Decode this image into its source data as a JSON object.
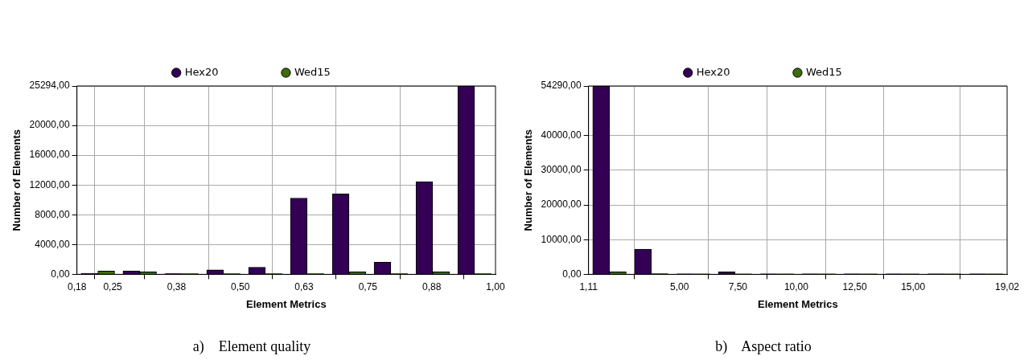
{
  "chart_data": [
    {
      "type": "histogram",
      "title": "a)    Element quality",
      "xlabel": "Element Metrics",
      "ylabel": "Number of Elements",
      "legend": "top",
      "grid": true,
      "bins": [
        0.18,
        0.262,
        0.344,
        0.426,
        0.508,
        0.59,
        0.672,
        0.754,
        0.836,
        0.918,
        1.0
      ],
      "series": [
        {
          "name": "Hex20",
          "color": "#330056",
          "values": [
            150,
            450,
            100,
            600,
            940,
            10240,
            10810,
            1630,
            12440,
            25294
          ]
        },
        {
          "name": "Wed15",
          "color": "#3d6b0e",
          "values": [
            450,
            330,
            100,
            100,
            100,
            100,
            330,
            100,
            330,
            100
          ]
        }
      ],
      "xlim": [
        0.18,
        1.0
      ],
      "xticks": [
        {
          "value": 0.18,
          "label": "0,18"
        },
        {
          "value": 0.25,
          "label": "0,25"
        },
        {
          "value": 0.375,
          "label": "0,38"
        },
        {
          "value": 0.5,
          "label": "0,50"
        },
        {
          "value": 0.625,
          "label": "0,63"
        },
        {
          "value": 0.75,
          "label": "0,75"
        },
        {
          "value": 0.875,
          "label": "0,88"
        },
        {
          "value": 1.0,
          "label": "1,00"
        }
      ],
      "ylim": [
        0,
        25294
      ],
      "yticks": [
        {
          "value": 0,
          "label": "0,00"
        },
        {
          "value": 4000,
          "label": "4000,00"
        },
        {
          "value": 8000,
          "label": "8000,00"
        },
        {
          "value": 12000,
          "label": "12000,00"
        },
        {
          "value": 16000,
          "label": "16000,00"
        },
        {
          "value": 20000,
          "label": "20000,00"
        },
        {
          "value": 25294,
          "label": "25294,00"
        }
      ]
    },
    {
      "type": "histogram",
      "title": "b)    Aspect ratio",
      "xlabel": "Element Metrics",
      "ylabel": "Number of Elements",
      "legend": "top",
      "grid": true,
      "bins": [
        1.11,
        2.901,
        4.692,
        6.483,
        8.274,
        10.065,
        11.856,
        13.647,
        15.438,
        17.229,
        19.02
      ],
      "series": [
        {
          "name": "Hex20",
          "color": "#330056",
          "values": [
            54290,
            7260,
            150,
            700,
            150,
            150,
            150,
            150,
            150,
            150
          ]
        },
        {
          "name": "Wed15",
          "color": "#3d6b0e",
          "values": [
            700,
            200,
            150,
            150,
            150,
            150,
            150,
            150,
            150,
            150
          ]
        }
      ],
      "xlim": [
        1.11,
        19.02
      ],
      "xticks": [
        {
          "value": 1.11,
          "label": "1,11"
        },
        {
          "value": 5,
          "label": "5,00"
        },
        {
          "value": 7.5,
          "label": "7,50"
        },
        {
          "value": 10,
          "label": "10,00"
        },
        {
          "value": 12.5,
          "label": "12,50"
        },
        {
          "value": 15,
          "label": "15,00"
        },
        {
          "value": 19.02,
          "label": "19,02"
        }
      ],
      "ylim": [
        0,
        54290
      ],
      "yticks": [
        {
          "value": 0,
          "label": "0,00"
        },
        {
          "value": 10000,
          "label": "10000,00"
        },
        {
          "value": 20000,
          "label": "20000,00"
        },
        {
          "value": 30000,
          "label": "30000,00"
        },
        {
          "value": 40000,
          "label": "40000,00"
        },
        {
          "value": 54290,
          "label": "54290,00"
        }
      ]
    }
  ]
}
